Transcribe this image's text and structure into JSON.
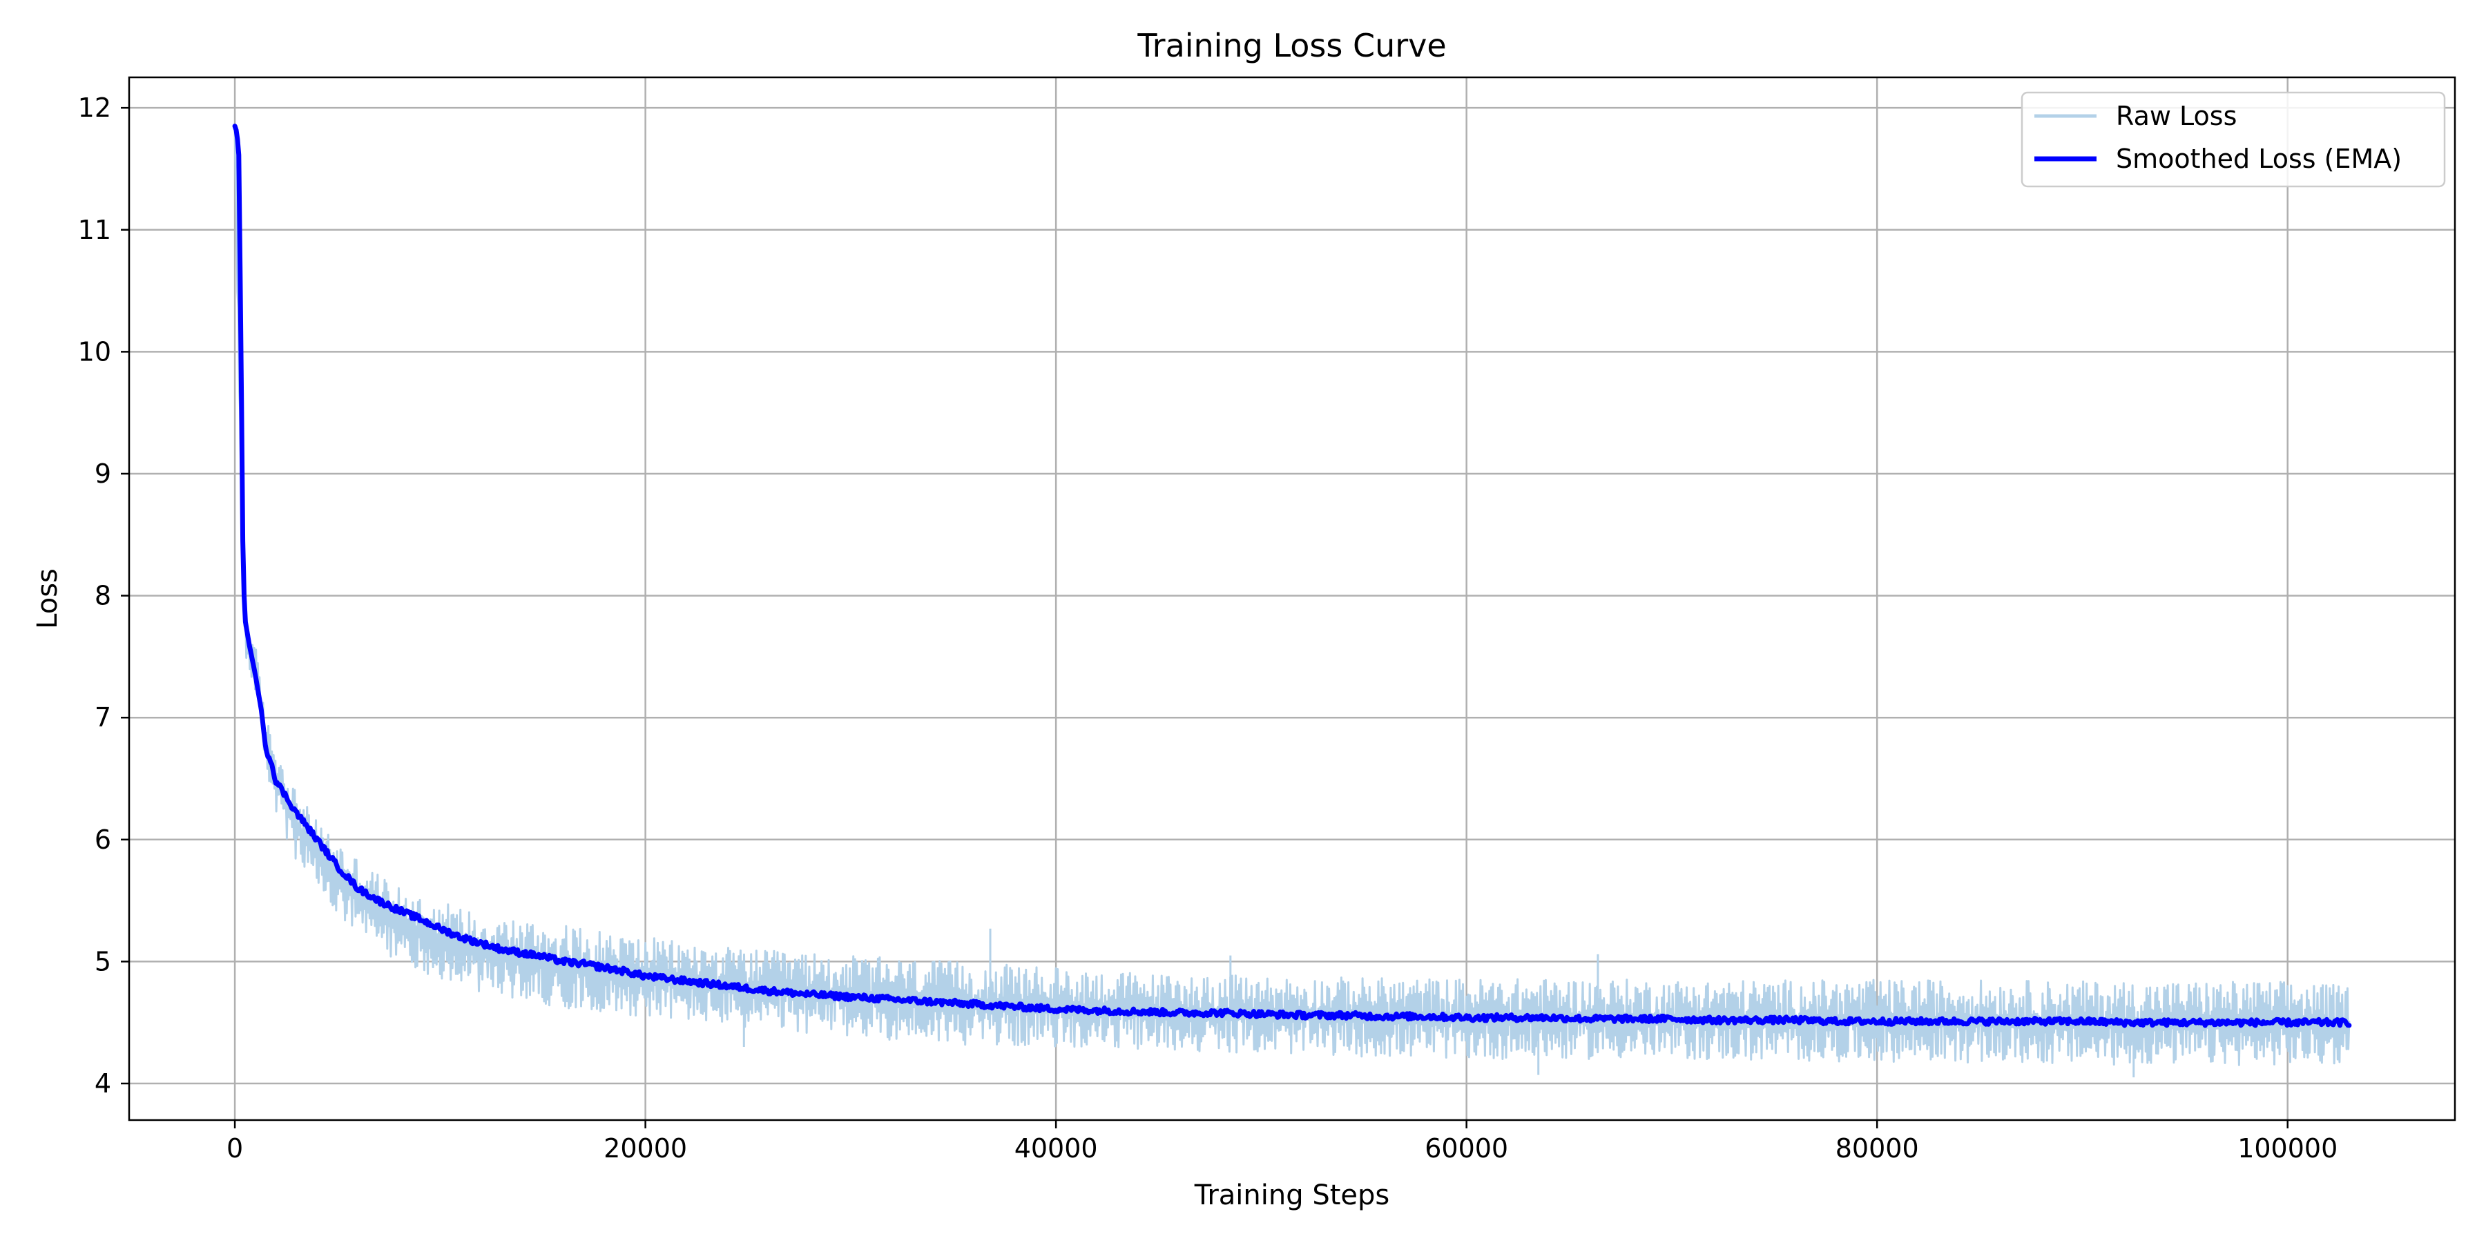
{
  "chart_data": {
    "type": "line",
    "title": "Training Loss Curve",
    "xlabel": "Training Steps",
    "ylabel": "Loss",
    "xlim": [
      -5150,
      108150
    ],
    "ylim": [
      3.7,
      12.25
    ],
    "xticks": [
      0,
      20000,
      40000,
      60000,
      80000,
      100000
    ],
    "yticks": [
      4,
      5,
      6,
      7,
      8,
      9,
      10,
      11,
      12
    ],
    "grid": true,
    "legend_position": "top-right",
    "colors": {
      "raw": "#b3d1e8",
      "smoothed": "#0000ff",
      "grid": "#b0b0b0"
    },
    "series": [
      {
        "name": "Raw Loss",
        "style": "noisy-band",
        "x": [
          0,
          300,
          500,
          1000,
          1500,
          2000,
          3000,
          4000,
          5000,
          6000,
          8000,
          10000,
          12000,
          14000,
          16000,
          18000,
          20000,
          25000,
          30000,
          35000,
          40000,
          45000,
          50000,
          55000,
          60000,
          65000,
          70000,
          75000,
          80000,
          85000,
          90000,
          95000,
          100000,
          103000
        ],
        "upper": [
          11.85,
          9.4,
          7.9,
          7.6,
          7.0,
          6.8,
          6.4,
          6.15,
          6.0,
          5.85,
          5.6,
          5.5,
          5.4,
          5.35,
          5.3,
          5.25,
          5.2,
          5.1,
          5.05,
          5.0,
          4.95,
          4.9,
          4.88,
          4.87,
          4.86,
          4.86,
          4.85,
          4.85,
          4.85,
          4.85,
          4.84,
          4.84,
          4.84,
          4.8
        ],
        "lower": [
          11.8,
          8.6,
          7.5,
          7.2,
          6.6,
          6.2,
          5.8,
          5.6,
          5.35,
          5.2,
          5.0,
          4.85,
          4.75,
          4.68,
          4.62,
          4.58,
          4.55,
          4.45,
          4.38,
          4.32,
          4.3,
          4.27,
          4.25,
          4.22,
          4.2,
          4.2,
          4.2,
          4.18,
          4.18,
          4.17,
          4.15,
          4.15,
          4.15,
          4.15
        ],
        "spikes": [
          {
            "x": 36800,
            "y": 5.27
          },
          {
            "x": 66400,
            "y": 5.06
          },
          {
            "x": 48500,
            "y": 5.05
          },
          {
            "x": 24800,
            "y": 4.3
          },
          {
            "x": 92500,
            "y": 4.05
          },
          {
            "x": 63500,
            "y": 4.07
          }
        ]
      },
      {
        "name": "Smoothed Loss (EMA)",
        "style": "solid",
        "x": [
          0,
          100,
          200,
          300,
          400,
          500,
          700,
          1000,
          1300,
          1500,
          1800,
          2000,
          2500,
          3000,
          4000,
          5000,
          6000,
          7000,
          8000,
          9000,
          10000,
          11000,
          12000,
          13000,
          14000,
          15000,
          16000,
          17000,
          18000,
          19000,
          20000,
          22000,
          24000,
          26000,
          28000,
          30000,
          32000,
          34000,
          36000,
          38000,
          40000,
          42000,
          44000,
          46000,
          48000,
          50000,
          52000,
          54000,
          56000,
          58000,
          60000,
          62000,
          64000,
          66000,
          68000,
          70000,
          72000,
          74000,
          76000,
          78000,
          80000,
          82000,
          84000,
          86000,
          88000,
          90000,
          92000,
          94000,
          96000,
          98000,
          100000,
          102000,
          103000
        ],
        "y": [
          11.85,
          11.8,
          11.6,
          10.0,
          8.2,
          7.8,
          7.6,
          7.35,
          7.05,
          6.75,
          6.62,
          6.48,
          6.35,
          6.22,
          6.0,
          5.78,
          5.6,
          5.5,
          5.42,
          5.35,
          5.27,
          5.2,
          5.15,
          5.1,
          5.07,
          5.04,
          5.0,
          4.98,
          4.95,
          4.92,
          4.88,
          4.84,
          4.8,
          4.76,
          4.73,
          4.71,
          4.69,
          4.67,
          4.65,
          4.63,
          4.61,
          4.6,
          4.59,
          4.58,
          4.58,
          4.57,
          4.56,
          4.56,
          4.55,
          4.55,
          4.54,
          4.54,
          4.54,
          4.53,
          4.53,
          4.53,
          4.52,
          4.52,
          4.52,
          4.51,
          4.51,
          4.51,
          4.51,
          4.51,
          4.51,
          4.51,
          4.5,
          4.5,
          4.5,
          4.5,
          4.5,
          4.5,
          4.5
        ]
      }
    ]
  }
}
